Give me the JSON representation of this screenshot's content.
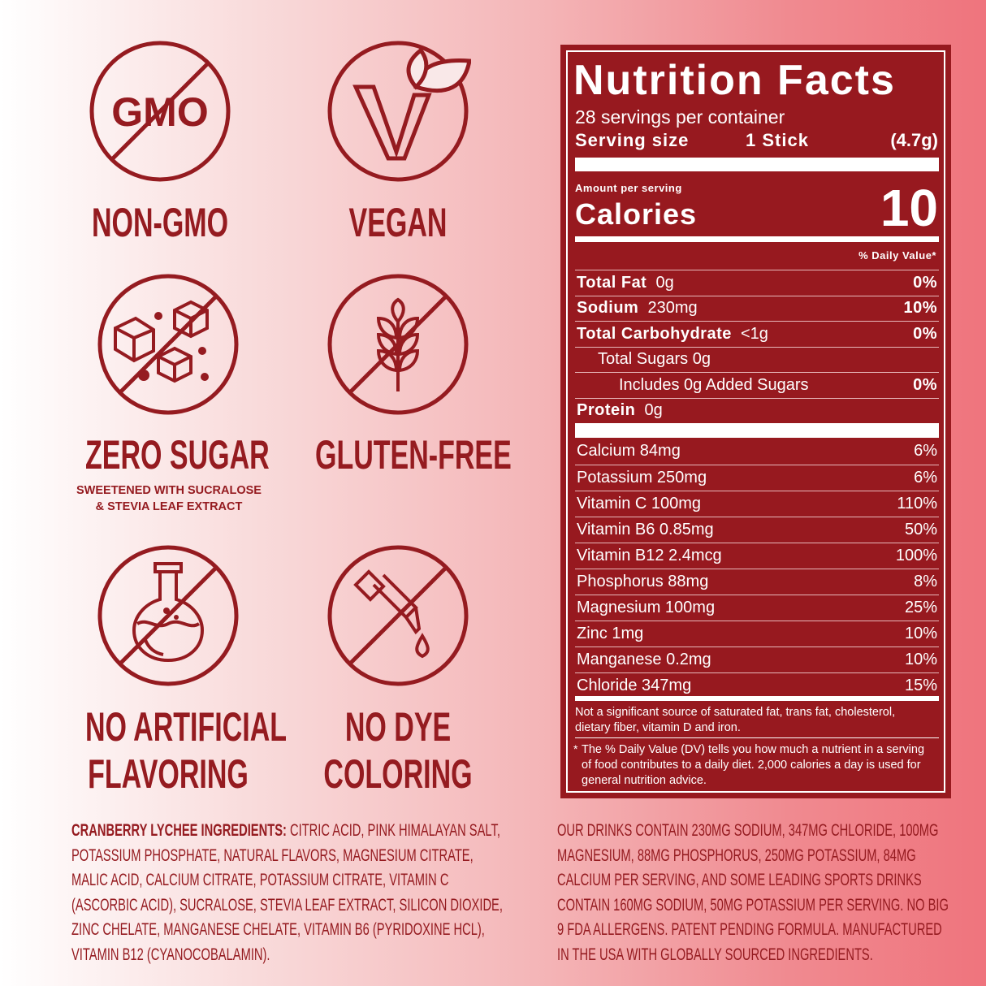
{
  "colors": {
    "brand": "#951b20",
    "panel": "#97191f"
  },
  "badges": [
    {
      "icon": "non-gmo-icon",
      "icon_text": "GMO",
      "label": "NON-GMO"
    },
    {
      "icon": "vegan-icon",
      "label": "VEGAN"
    },
    {
      "icon": "zero-sugar-icon",
      "label": "ZERO SUGAR",
      "sub1": "SWEETENED WITH SUCRALOSE",
      "sub2": "& STEVIA LEAF EXTRACT"
    },
    {
      "icon": "gluten-free-icon",
      "label": "GLUTEN-FREE"
    },
    {
      "icon": "no-artificial-flavoring-icon",
      "label1": "NO ARTIFICIAL",
      "label2": "FLAVORING"
    },
    {
      "icon": "no-dye-icon",
      "label1": "NO DYE",
      "label2": "COLORING"
    }
  ],
  "nutrition": {
    "title": "Nutrition Facts",
    "servings": "28 servings per container",
    "serving_size_label": "Serving size",
    "serving_size": "1 Stick",
    "serving_weight": "(4.7g)",
    "amount_per_serving": "Amount per serving",
    "calories_label": "Calories",
    "calories": "10",
    "dv_header": "% Daily Value*",
    "macros": [
      {
        "name": "Total Fat",
        "amount": "0g",
        "dv": "0%",
        "bold": true,
        "indent": 0
      },
      {
        "name": "Sodium",
        "amount": "230mg",
        "dv": "10%",
        "bold": true,
        "indent": 0
      },
      {
        "name": "Total Carbohydrate",
        "amount": "<1g",
        "dv": "0%",
        "bold": true,
        "indent": 0
      },
      {
        "name": "Total Sugars 0g",
        "amount": "",
        "dv": "",
        "bold": false,
        "indent": 1
      },
      {
        "name": "Includes 0g Added Sugars",
        "amount": "",
        "dv": "0%",
        "bold": false,
        "indent": 2
      },
      {
        "name": "Protein",
        "amount": "0g",
        "dv": "",
        "bold": true,
        "indent": 0
      }
    ],
    "micros": [
      {
        "name": "Calcium 84mg",
        "dv": "6%"
      },
      {
        "name": "Potassium 250mg",
        "dv": "6%"
      },
      {
        "name": "Vitamin C 100mg",
        "dv": "110%"
      },
      {
        "name": "Vitamin B6 0.85mg",
        "dv": "50%"
      },
      {
        "name": "Vitamin B12 2.4mcg",
        "dv": "100%"
      },
      {
        "name": "Phosphorus 88mg",
        "dv": "8%"
      },
      {
        "name": "Magnesium 100mg",
        "dv": "25%"
      },
      {
        "name": "Zinc 1mg",
        "dv": "10%"
      },
      {
        "name": "Manganese 0.2mg",
        "dv": "10%"
      },
      {
        "name": "Chloride 347mg",
        "dv": "15%"
      }
    ],
    "note1": "Not a significant source of saturated fat, trans fat, cholesterol, dietary fiber, vitamin D and iron.",
    "note2_star": "*",
    "note2": "The % Daily Value (DV) tells you how much a nutrient in a serving of food contributes to a daily diet. 2,000 calories a day is used for general nutrition advice."
  },
  "ingredients": {
    "heading": "CRANBERRY LYCHEE INGREDIENTS:",
    "text": " CITRIC ACID, PINK HIMALAYAN SALT, POTASSIUM PHOSPHATE, NATURAL FLAVORS, MAGNESIUM CITRATE, MALIC ACID, CALCIUM CITRATE, POTASSIUM CITRATE, VITAMIN C (ASCORBIC ACID), SUCRALOSE, STEVIA LEAF EXTRACT, SILICON DIOXIDE, ZINC CHELATE, MANGANESE CHELATE, VITAMIN B6 (PYRIDOXINE HCL), VITAMIN B12 (CYANOCOBALAMIN)."
  },
  "claims": "OUR DRINKS CONTAIN 230MG SODIUM, 347MG CHLORIDE,  100MG MAGNESIUM, 88MG PHOSPHORUS, 250MG POTASSIUM, 84MG CALCIUM PER SERVING, AND SOME LEADING SPORTS DRINKS CONTAIN 160MG SODIUM, 50MG POTASSIUM PER SERVING. NO BIG 9 FDA ALLERGENS. PATENT PENDING FORMULA. MANUFACTURED IN THE USA WITH GLOBALLY SOURCED INGREDIENTS."
}
